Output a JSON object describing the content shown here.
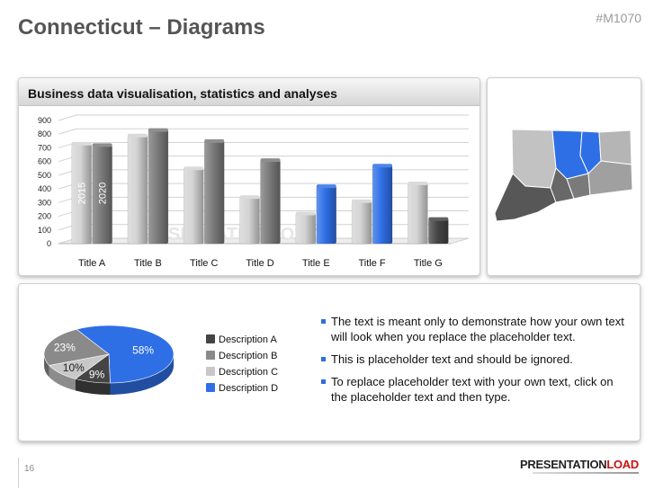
{
  "title": "Connecticut – Diagrams",
  "code": "#M1070",
  "chart_panel_title": "Business data visualisation, statistics and analyses",
  "chart_data": [
    {
      "type": "bar",
      "categories": [
        "Title A",
        "Title B",
        "Title C",
        "Title D",
        "Title E",
        "Title F",
        "Title G"
      ],
      "series": [
        {
          "name": "2015",
          "values": [
            730,
            790,
            550,
            340,
            220,
            310,
            440
          ]
        },
        {
          "name": "2020",
          "values": [
            720,
            830,
            750,
            610,
            420,
            570,
            180
          ]
        }
      ],
      "ylim": [
        0,
        900
      ],
      "yticks": [
        0,
        100,
        200,
        300,
        400,
        500,
        600,
        700,
        800,
        900
      ],
      "grid": true
    },
    {
      "type": "pie",
      "labels": [
        "Description A",
        "Description B",
        "Description C",
        "Description D"
      ],
      "values": [
        9,
        23,
        10,
        58
      ],
      "value_labels": [
        "9%",
        "23%",
        "10%",
        "58%"
      ],
      "colors": [
        "#444444",
        "#8a8a8a",
        "#c8c8c8",
        "#2f6fe6"
      ],
      "legend": "right"
    }
  ],
  "bar_colors": {
    "light": "#d4d4d4",
    "dark": "#7a7a7a",
    "blue": "#2f6fe6",
    "darkest": "#444444"
  },
  "bullets": [
    "The text is meant only to demonstrate how your own text will look when you replace the placeholder text.",
    "This is placeholder text and should be ignored.",
    "To replace placeholder text with your own text, click on the placeholder text and then type."
  ],
  "page_number": "16",
  "brand": {
    "part1": "PRESENTATION",
    "part2": "LOAD"
  },
  "watermark": "PRESENTATIONLOAD"
}
